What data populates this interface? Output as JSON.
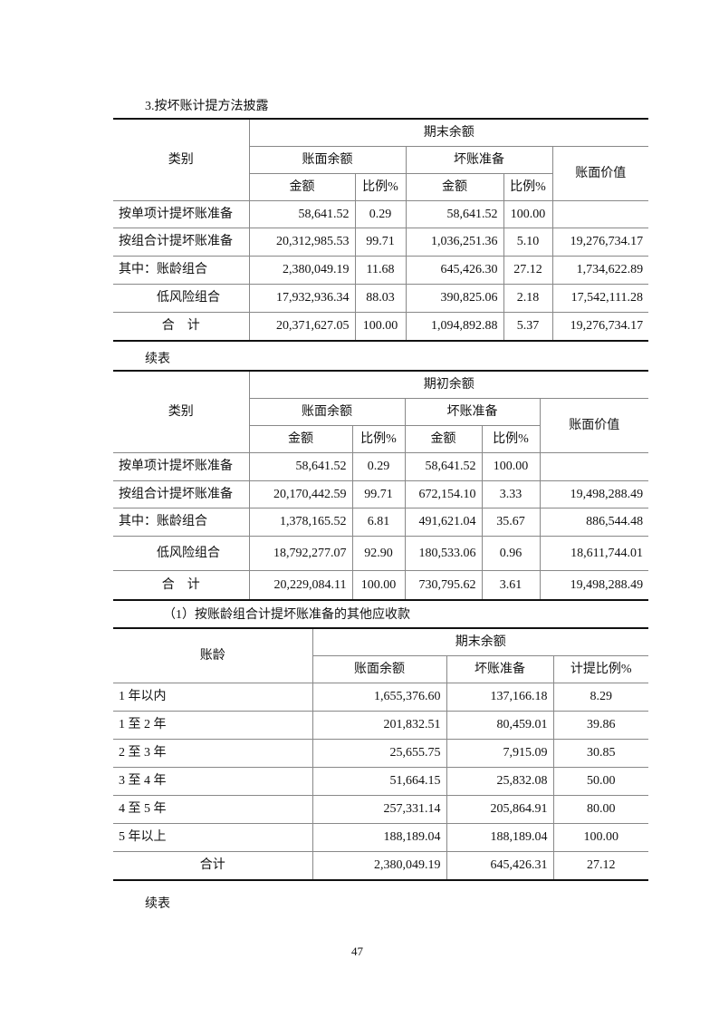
{
  "section_title": "3.按坏账计提方法披露",
  "table1": {
    "header": {
      "category": "类别",
      "period": "期末余额",
      "book_balance": "账面余额",
      "bad_debt": "坏账准备",
      "book_value": "账面价值",
      "amount": "金额",
      "ratio": "比例%"
    },
    "rows": [
      [
        "按单项计提坏账准备",
        "58,641.52",
        "0.29",
        "58,641.52",
        "100.00",
        ""
      ],
      [
        "按组合计提坏账准备",
        "20,312,985.53",
        "99.71",
        "1,036,251.36",
        "5.10",
        "19,276,734.17"
      ],
      [
        "其中：账龄组合",
        "2,380,049.19",
        "11.68",
        "645,426.30",
        "27.12",
        "1,734,622.89"
      ],
      [
        "低风险组合",
        "17,932,936.34",
        "88.03",
        "390,825.06",
        "2.18",
        "17,542,111.28"
      ],
      [
        "合　计",
        "20,371,627.05",
        "100.00",
        "1,094,892.88",
        "5.37",
        "19,276,734.17"
      ]
    ]
  },
  "continued_label_1": "续表",
  "table2": {
    "header": {
      "category": "类别",
      "period": "期初余额",
      "book_balance": "账面余额",
      "bad_debt": "坏账准备",
      "book_value": "账面价值",
      "amount": "金额",
      "ratio": "比例%"
    },
    "rows": [
      [
        "按单项计提坏账准备",
        "58,641.52",
        "0.29",
        "58,641.52",
        "100.00",
        ""
      ],
      [
        "按组合计提坏账准备",
        "20,170,442.59",
        "99.71",
        "672,154.10",
        "3.33",
        "19,498,288.49"
      ],
      [
        "其中：账龄组合",
        "1,378,165.52",
        "6.81",
        "491,621.04",
        "35.67",
        "886,544.48"
      ],
      [
        "低风险组合",
        "18,792,277.07",
        "92.90",
        "180,533.06",
        "0.96",
        "18,611,744.01"
      ],
      [
        "合　计",
        "20,229,084.11",
        "100.00",
        "730,795.62",
        "3.61",
        "19,498,288.49"
      ]
    ]
  },
  "subsection_title": "（1）按账龄组合计提坏账准备的其他应收款",
  "table3": {
    "header": {
      "aging": "账龄",
      "period": "期末余额",
      "book_balance": "账面余额",
      "bad_debt": "坏账准备",
      "ratio": "计提比例%"
    },
    "rows": [
      [
        "1 年以内",
        "1,655,376.60",
        "137,166.18",
        "8.29"
      ],
      [
        "1 至 2 年",
        "201,832.51",
        "80,459.01",
        "39.86"
      ],
      [
        "2 至 3 年",
        "25,655.75",
        "7,915.09",
        "30.85"
      ],
      [
        "3 至 4 年",
        "51,664.15",
        "25,832.08",
        "50.00"
      ],
      [
        "4 至 5 年",
        "257,331.14",
        "205,864.91",
        "80.00"
      ],
      [
        "5 年以上",
        "188,189.04",
        "188,189.04",
        "100.00"
      ],
      [
        "合计",
        "2,380,049.19",
        "645,426.31",
        "27.12"
      ]
    ]
  },
  "continued_label_2": "续表",
  "page_number": "47"
}
